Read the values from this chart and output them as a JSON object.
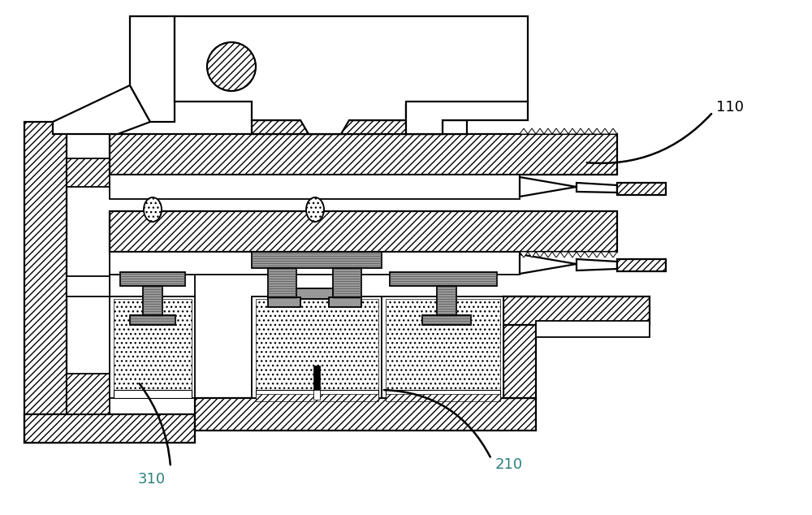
{
  "bg_color": "#ffffff",
  "line_color": "#000000",
  "gray_fill": "#999999",
  "light_gray": "#cccccc",
  "label_110": "110",
  "label_210": "210",
  "label_310": "310",
  "label_color_teal": "#2d8080",
  "label_color_black": "#000000",
  "fig_width": 10.0,
  "fig_height": 6.34
}
